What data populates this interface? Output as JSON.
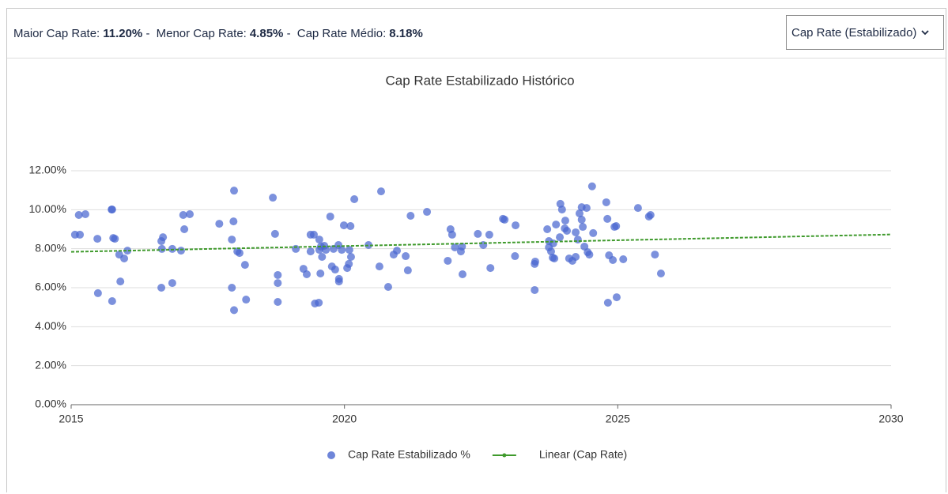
{
  "header": {
    "stats": [
      {
        "label": "Maior Cap Rate:",
        "value": "11.20%"
      },
      {
        "label": "Menor Cap Rate:",
        "value": "4.85%"
      },
      {
        "label": "Cap Rate Médio:",
        "value": "8.18%"
      }
    ],
    "separator": "-",
    "dropdown": "Cap Rate (Estabilizado)"
  },
  "chart_data": {
    "type": "scatter",
    "title": "Cap Rate Estabilizado Histórico",
    "xlim": [
      2015,
      2030
    ],
    "xticks": [
      2015,
      2020,
      2025,
      2030
    ],
    "ylim": [
      0,
      12
    ],
    "yticks": [
      {
        "value": 0,
        "label": "0.00%"
      },
      {
        "value": 2,
        "label": "2.00%"
      },
      {
        "value": 4,
        "label": "4.00%"
      },
      {
        "value": 6,
        "label": "6.00%"
      },
      {
        "value": 8,
        "label": "8.00%"
      },
      {
        "value": 10,
        "label": "10.00%"
      },
      {
        "value": 12,
        "label": "12.00%"
      }
    ],
    "grid": true,
    "legend": "bottom",
    "series": [
      {
        "name": "Cap Rate Estabilizado %",
        "type": "scatter",
        "color": "#4a66d0",
        "x": [
          2015.07,
          2015.14,
          2015.16,
          2015.26,
          2015.48,
          2015.49,
          2015.74,
          2015.75,
          2015.75,
          2015.77,
          2015.8,
          2015.88,
          2015.9,
          2015.97,
          2016.03,
          2016.65,
          2016.68,
          2016.66,
          2016.65,
          2016.85,
          2016.85,
          2017.01,
          2017.05,
          2017.07,
          2017.17,
          2017.71,
          2017.94,
          2017.94,
          2017.97,
          2017.98,
          2017.98,
          2018.04,
          2018.08,
          2018.18,
          2018.2,
          2018.69,
          2018.73,
          2018.78,
          2018.78,
          2018.78,
          2019.11,
          2019.25,
          2019.31,
          2019.38,
          2019.38,
          2019.44,
          2019.46,
          2019.53,
          2019.54,
          2019.54,
          2019.56,
          2019.57,
          2019.59,
          2019.63,
          2019.66,
          2019.74,
          2019.77,
          2019.8,
          2019.83,
          2019.89,
          2019.9,
          2019.9,
          2019.95,
          2019.99,
          2020.05,
          2020.08,
          2020.09,
          2020.11,
          2020.12,
          2020.18,
          2020.44,
          2020.64,
          2020.67,
          2020.8,
          2020.9,
          2020.96,
          2021.12,
          2021.16,
          2021.21,
          2021.51,
          2021.89,
          2021.94,
          2021.97,
          2022.02,
          2022.13,
          2022.16,
          2022.15,
          2022.44,
          2022.54,
          2022.65,
          2022.67,
          2022.9,
          2022.93,
          2023.12,
          2023.13,
          2023.48,
          2023.48,
          2023.49,
          2023.71,
          2023.74,
          2023.74,
          2023.78,
          2023.82,
          2023.81,
          2023.84,
          2023.87,
          2023.94,
          2023.95,
          2023.98,
          2024.03,
          2024.04,
          2024.07,
          2024.11,
          2024.17,
          2024.23,
          2024.23,
          2024.27,
          2024.3,
          2024.34,
          2024.34,
          2024.36,
          2024.39,
          2024.43,
          2024.45,
          2024.48,
          2024.53,
          2024.55,
          2024.79,
          2024.81,
          2024.82,
          2024.84,
          2024.91,
          2024.94,
          2024.97,
          2024.98,
          2025.1,
          2025.37,
          2025.57,
          2025.6,
          2025.68,
          2025.79
        ],
        "values": [
          8.72,
          9.73,
          8.72,
          9.77,
          8.51,
          5.72,
          10.01,
          10.01,
          5.31,
          8.55,
          8.51,
          7.7,
          6.32,
          7.5,
          7.9,
          8.39,
          8.59,
          7.99,
          6.0,
          7.99,
          6.24,
          7.9,
          9.73,
          9.0,
          9.77,
          9.28,
          6.0,
          8.47,
          9.4,
          10.98,
          4.85,
          7.86,
          7.78,
          7.17,
          5.39,
          10.62,
          8.76,
          6.65,
          6.24,
          5.27,
          7.99,
          6.97,
          6.69,
          8.72,
          7.86,
          8.72,
          5.19,
          5.23,
          7.94,
          8.47,
          6.73,
          8.11,
          7.58,
          8.15,
          7.94,
          9.65,
          7.09,
          7.99,
          6.93,
          8.19,
          6.45,
          6.32,
          7.94,
          9.2,
          7.01,
          7.22,
          7.94,
          9.16,
          7.58,
          10.54,
          8.19,
          7.09,
          10.94,
          6.04,
          7.7,
          7.9,
          7.62,
          6.89,
          9.69,
          9.89,
          7.38,
          9.0,
          8.72,
          8.07,
          7.86,
          6.69,
          8.11,
          8.76,
          8.19,
          8.72,
          7.01,
          9.53,
          9.49,
          7.62,
          9.2,
          7.22,
          5.88,
          7.34,
          9.0,
          8.07,
          8.39,
          7.86,
          8.27,
          7.54,
          7.5,
          9.24,
          8.59,
          10.3,
          10.01,
          9.04,
          9.44,
          8.92,
          7.5,
          7.38,
          7.58,
          8.84,
          8.47,
          9.81,
          10.13,
          9.49,
          9.12,
          8.11,
          10.09,
          7.82,
          7.7,
          11.2,
          8.8,
          10.38,
          9.53,
          5.23,
          7.66,
          7.42,
          9.12,
          9.16,
          5.51,
          7.46,
          10.09,
          9.65,
          9.73,
          7.7,
          6.73
        ]
      },
      {
        "name": "Linear (Cap Rate)",
        "type": "line",
        "color": "#3f9a2c",
        "x": [
          2015,
          2030
        ],
        "values": [
          7.84,
          8.73
        ]
      }
    ]
  }
}
